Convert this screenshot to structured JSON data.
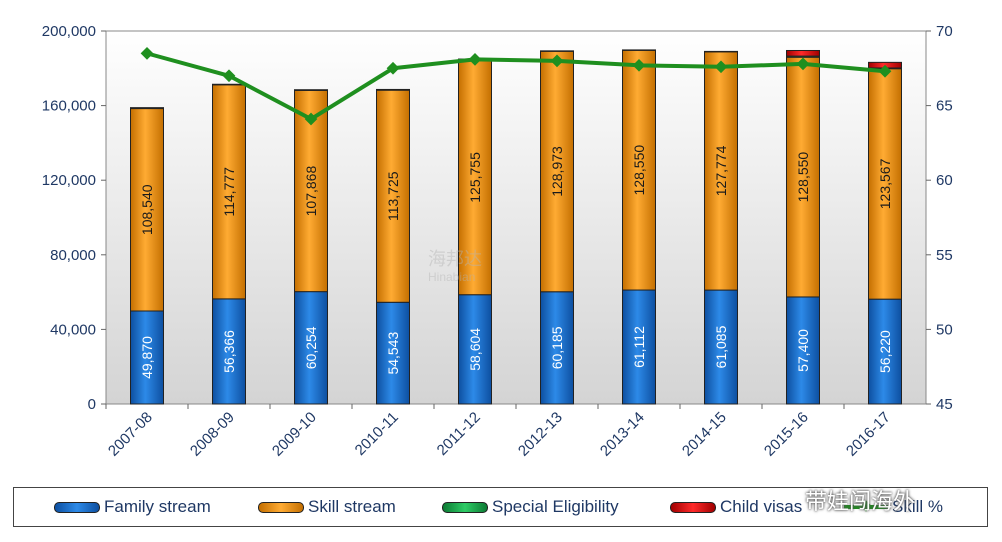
{
  "chart_data": {
    "type": "bar",
    "stacked": true,
    "categories": [
      "2007-08",
      "2008-09",
      "2009-10",
      "2010-11",
      "2011-12",
      "2012-13",
      "2013-14",
      "2014-15",
      "2015-16",
      "2016-17"
    ],
    "series": [
      {
        "name": "Family stream",
        "color": "#1a6fd1",
        "values": [
          49870,
          56366,
          60254,
          54543,
          58604,
          60185,
          61112,
          61085,
          57400,
          56220
        ]
      },
      {
        "name": "Skill stream",
        "color": "#f39c1a",
        "values": [
          108540,
          114777,
          107868,
          113725,
          125755,
          128973,
          128550,
          127774,
          128550,
          123567
        ]
      },
      {
        "name": "Special Eligibility",
        "color": "#1aa34a",
        "values": [
          500,
          300,
          400,
          400,
          600,
          200,
          200,
          200,
          600,
          400
        ]
      },
      {
        "name": "Child visas",
        "color": "#e01010",
        "values": [
          0,
          0,
          0,
          0,
          0,
          0,
          0,
          0,
          3000,
          3000
        ]
      }
    ],
    "line_series": {
      "name": "Skill %",
      "color": "#1f8f1f",
      "axis": "right",
      "values": [
        68.5,
        67.0,
        64.1,
        67.5,
        68.1,
        68.0,
        67.7,
        67.6,
        67.8,
        67.3
      ]
    },
    "left_axis": {
      "min": 0,
      "max": 200000,
      "ticks": [
        "0",
        "40,000",
        "80,000",
        "120,000",
        "160,000",
        "200,000"
      ]
    },
    "right_axis": {
      "min": 45,
      "max": 70,
      "ticks": [
        "45",
        "50",
        "55",
        "60",
        "65",
        "70"
      ]
    },
    "bar_labels": {
      "family": [
        "49,870",
        "56,366",
        "60,254",
        "54,543",
        "58,604",
        "60,185",
        "61,112",
        "61,085",
        "57,400",
        "56,220"
      ],
      "skill": [
        "108,540",
        "114,777",
        "107,868",
        "113,725",
        "125,755",
        "128,973",
        "128,550",
        "127,774",
        "128,550",
        "123,567"
      ]
    },
    "legend_position": "bottom",
    "grid": false
  },
  "watermark": {
    "line1": "海邦达",
    "line2": "Hinabian"
  },
  "wechat_watermark": "带娃闯海外"
}
